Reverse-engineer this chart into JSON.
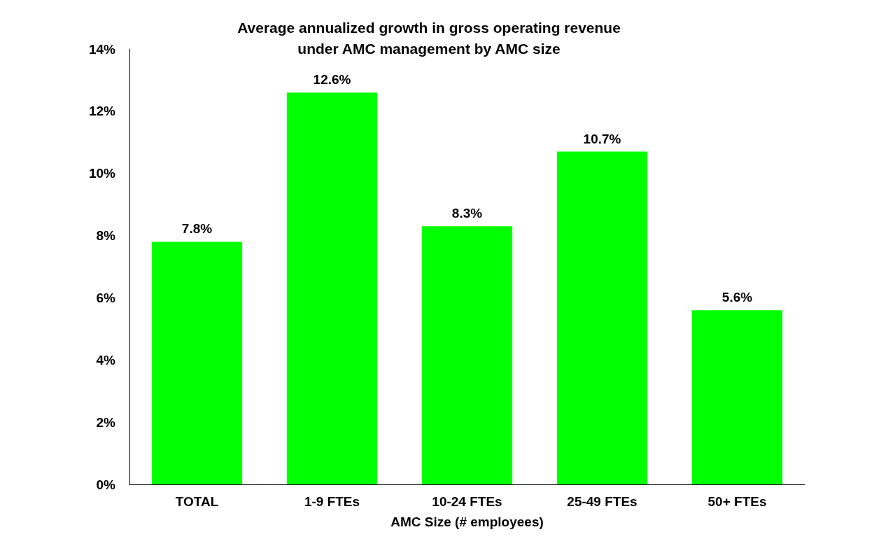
{
  "chart_data": {
    "type": "bar",
    "title": "Average annualized growth in gross operating revenue\nunder AMC management by AMC size",
    "xlabel": "AMC Size (# employees)",
    "categories": [
      "TOTAL",
      "1-9 FTEs",
      "10-24 FTEs",
      "25-49 FTEs",
      "50+ FTEs"
    ],
    "values": [
      7.8,
      12.6,
      8.3,
      10.7,
      5.6
    ],
    "value_labels": [
      "7.8%",
      "12.6%",
      "8.3%",
      "10.7%",
      "5.6%"
    ],
    "color": "#00ff00",
    "ylim": [
      0,
      14
    ],
    "yticks": [
      {
        "value": 0,
        "label": "0%"
      },
      {
        "value": 2,
        "label": "2%"
      },
      {
        "value": 4,
        "label": "4%"
      },
      {
        "value": 6,
        "label": "6%"
      },
      {
        "value": 8,
        "label": "8%"
      },
      {
        "value": 10,
        "label": "10%"
      },
      {
        "value": 12,
        "label": "12%"
      },
      {
        "value": 14,
        "label": "14%"
      }
    ],
    "grid": false
  }
}
